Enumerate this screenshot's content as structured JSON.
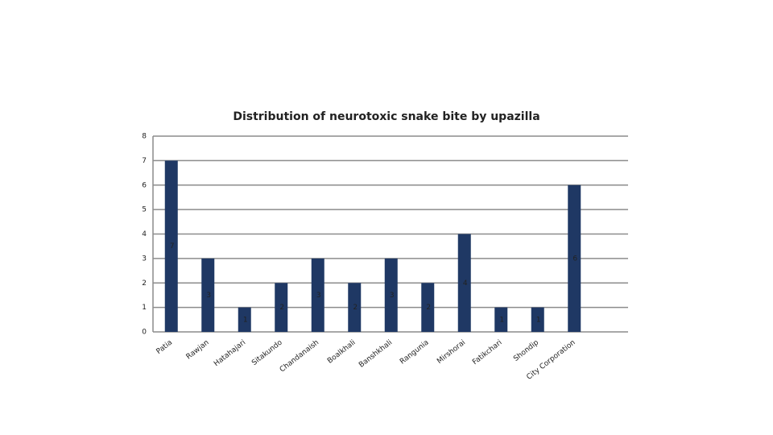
{
  "chart_data": {
    "type": "bar",
    "title": "Distribution of neurotoxic snake bite by upazilla",
    "categories": [
      "Patia",
      "Rawjan",
      "Hatahajari",
      "Sitakundo",
      "Chandanaish",
      "Boalkhali",
      "Banshkhali",
      "Rangunia",
      "Mirshorai",
      "Fatikchari",
      "Shondip",
      "City Corporation"
    ],
    "values": [
      7,
      3,
      1,
      2,
      3,
      2,
      3,
      2,
      4,
      1,
      1,
      6
    ],
    "color": "#1f3864",
    "ylim": [
      0,
      8
    ],
    "yticks": [
      0,
      1,
      2,
      3,
      4,
      5,
      6,
      7,
      8
    ],
    "grid": true
  }
}
